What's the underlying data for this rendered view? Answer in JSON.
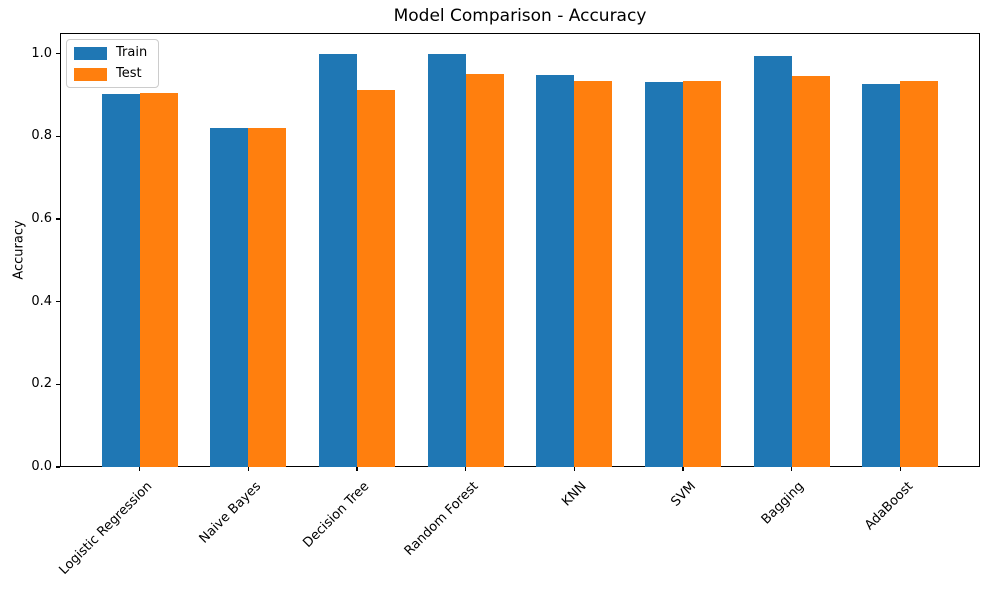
{
  "chart_data": {
    "type": "bar",
    "title": "Model Comparison - Accuracy",
    "xlabel": "",
    "ylabel": "Accuracy",
    "categories": [
      "Logistic Regression",
      "Naive Bayes",
      "Decision Tree",
      "Random Forest",
      "KNN",
      "SVM",
      "Bagging",
      "AdaBoost"
    ],
    "series": [
      {
        "name": "Train",
        "color": "#1f77b4",
        "values": [
          0.902,
          0.82,
          1.0,
          1.0,
          0.949,
          0.932,
          0.994,
          0.927
        ]
      },
      {
        "name": "Test",
        "color": "#ff7f0e",
        "values": [
          0.906,
          0.82,
          0.913,
          0.952,
          0.933,
          0.935,
          0.947,
          0.933
        ]
      }
    ],
    "ylim": [
      0,
      1.05
    ],
    "yticks": [
      0.0,
      0.2,
      0.4,
      0.6,
      0.8,
      1.0
    ],
    "bar_width": 0.35,
    "legend_position": "upper left",
    "grid": false
  }
}
